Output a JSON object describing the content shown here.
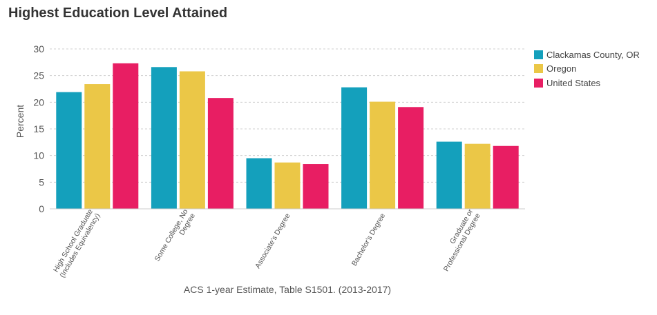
{
  "chart_data": {
    "type": "bar",
    "title": "Highest Education Level Attained",
    "xlabel": "ACS 1-year Estimate, Table S1501. (2013-2017)",
    "ylabel": "Percent",
    "ylim": [
      0,
      30
    ],
    "yticks": [
      "0",
      "5",
      "10",
      "15",
      "20",
      "25",
      "30"
    ],
    "grid": true,
    "legend_position": "right",
    "categories": [
      [
        "High School Graduate",
        "(Includes Equivalency)"
      ],
      [
        "Some College, No",
        "Degree"
      ],
      [
        "Associate's Degree"
      ],
      [
        "Bachelor's Degree"
      ],
      [
        "Graduate or",
        "Professional Degree"
      ]
    ],
    "series": [
      {
        "name": "Clackamas County, OR",
        "color": "#14a0bc",
        "values": [
          21.9,
          26.6,
          9.5,
          22.8,
          12.6
        ]
      },
      {
        "name": "Oregon",
        "color": "#ebc747",
        "values": [
          23.4,
          25.8,
          8.7,
          20.1,
          12.2
        ]
      },
      {
        "name": "United States",
        "color": "#e81e63",
        "values": [
          27.3,
          20.8,
          8.4,
          19.1,
          11.8
        ]
      }
    ]
  }
}
